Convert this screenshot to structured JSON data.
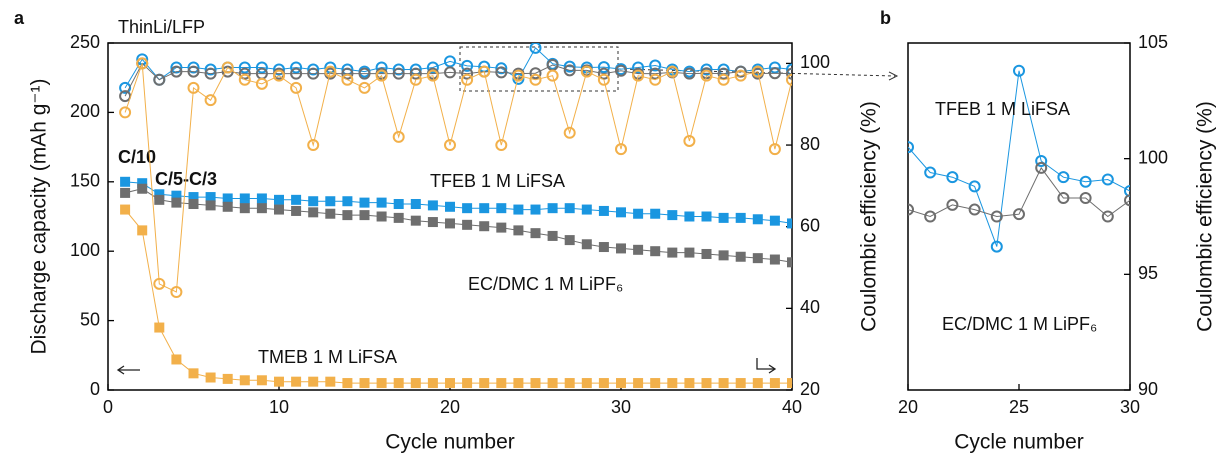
{
  "chart_data": [
    {
      "type": "line",
      "panel_label": "a",
      "xlabel": "Cycle number",
      "ylabel": "Discharge capacity (mAh g⁻¹)",
      "y2label": "Coulombic efficiency (%)",
      "xlim": [
        0,
        40
      ],
      "xticks": [
        0,
        10,
        20,
        30,
        40
      ],
      "ylim": [
        0,
        250
      ],
      "yticks": [
        0,
        50,
        100,
        150,
        200,
        250
      ],
      "y2lim": [
        20,
        105
      ],
      "y2ticks": [
        20,
        40,
        60,
        80,
        100
      ],
      "annotations": [
        "ThinLi/LFP",
        "C/10",
        "C/5-C/3"
      ],
      "x": [
        1,
        2,
        3,
        4,
        5,
        6,
        7,
        8,
        9,
        10,
        11,
        12,
        13,
        14,
        15,
        16,
        17,
        18,
        19,
        20,
        21,
        22,
        23,
        24,
        25,
        26,
        27,
        28,
        29,
        30,
        31,
        32,
        33,
        34,
        35,
        36,
        37,
        38,
        39,
        40
      ],
      "series": [
        {
          "name": "TFEB 1 M LiFSA",
          "color": "#1a96e0",
          "marker": "square",
          "values": [
            150,
            149,
            141,
            140,
            139,
            139,
            138,
            138,
            138,
            137,
            137,
            136,
            136,
            136,
            135,
            135,
            134,
            134,
            133,
            132,
            131,
            131,
            131,
            130,
            130,
            131,
            131,
            130,
            129,
            128,
            127,
            127,
            126,
            125,
            125,
            124,
            124,
            123,
            122,
            120
          ]
        },
        {
          "name": "EC/DMC 1 M LiPF₆",
          "color": "#6e6e6e",
          "marker": "square",
          "values": [
            142,
            145,
            137,
            135,
            134,
            133,
            132,
            131,
            131,
            130,
            129,
            128,
            127,
            126,
            126,
            125,
            124,
            122,
            121,
            120,
            119,
            118,
            117,
            115,
            113,
            111,
            108,
            105,
            103,
            102,
            101,
            100,
            99,
            99,
            98,
            97,
            96,
            95,
            94,
            92
          ]
        },
        {
          "name": "TMEB 1 M LiFSA",
          "color": "#f2b04a",
          "marker": "square",
          "values": [
            130,
            115,
            45,
            22,
            12,
            9,
            8,
            7,
            7,
            6,
            6,
            6,
            6,
            5,
            5,
            5,
            5,
            5,
            5,
            5,
            5,
            5,
            5,
            5,
            5,
            5,
            5,
            5,
            5,
            5,
            5,
            5,
            5,
            5,
            5,
            5,
            5,
            5,
            5,
            5
          ]
        },
        {
          "color": "#1a96e0",
          "marker": "circle",
          "axis": "y2",
          "values": [
            94,
            101,
            96,
            99,
            99,
            98.5,
            99,
            99,
            99,
            98.5,
            99,
            98.5,
            99,
            98.5,
            98,
            99,
            98.5,
            98.5,
            99,
            100.5,
            99.4,
            99.2,
            98.8,
            96.2,
            103.8,
            99.9,
            99.2,
            99,
            99.1,
            98.6,
            99,
            99.5,
            98.5,
            98,
            98.5,
            98.5,
            98,
            98.5,
            99,
            98.5
          ]
        },
        {
          "color": "#6e6e6e",
          "marker": "circle",
          "axis": "y2",
          "values": [
            92,
            100,
            96,
            98,
            98,
            97.5,
            98,
            97.5,
            97.5,
            97.5,
            97.5,
            97.5,
            97.5,
            97.5,
            97.5,
            97.5,
            97.5,
            97.5,
            97.5,
            97.8,
            97.5,
            98,
            97.8,
            97.5,
            97.6,
            99.6,
            98.3,
            98.3,
            97.5,
            98.2,
            97.5,
            97.5,
            97.8,
            97.5,
            97.6,
            97.5,
            98,
            97.5,
            97.6,
            97.5
          ]
        },
        {
          "color": "#f2b04a",
          "marker": "circle",
          "axis": "y2",
          "values": [
            88,
            100,
            46,
            44,
            94,
            91,
            99,
            96,
            95,
            97,
            94,
            80,
            98,
            96,
            94,
            97,
            82,
            96,
            97,
            80,
            96,
            98,
            80,
            97,
            96,
            97,
            83,
            98,
            96,
            79,
            97,
            96,
            98,
            81,
            97,
            96,
            97,
            98,
            79,
            96
          ]
        }
      ]
    },
    {
      "type": "line",
      "panel_label": "b",
      "xlabel": "Cycle number",
      "ylabel": "Coulombic efficiency (%)",
      "y_axis_side": "right",
      "xlim": [
        20,
        30
      ],
      "xticks": [
        20,
        25,
        30
      ],
      "ylim": [
        90,
        105
      ],
      "yticks": [
        90,
        95,
        100,
        105
      ],
      "x": [
        20,
        21,
        22,
        23,
        24,
        25,
        26,
        27,
        28,
        29,
        30
      ],
      "series": [
        {
          "name": "TFEB 1 M LiFSA",
          "color": "#1a96e0",
          "marker": "circle",
          "values": [
            100.5,
            99.4,
            99.2,
            98.8,
            96.2,
            103.8,
            99.9,
            99.2,
            99,
            99.1,
            98.6
          ]
        },
        {
          "name": "EC/DMC 1 M LiPF₆",
          "color": "#6e6e6e",
          "marker": "circle",
          "values": [
            97.8,
            97.5,
            98,
            97.8,
            97.5,
            97.6,
            99.6,
            98.3,
            98.3,
            97.5,
            98.2
          ]
        }
      ]
    }
  ]
}
